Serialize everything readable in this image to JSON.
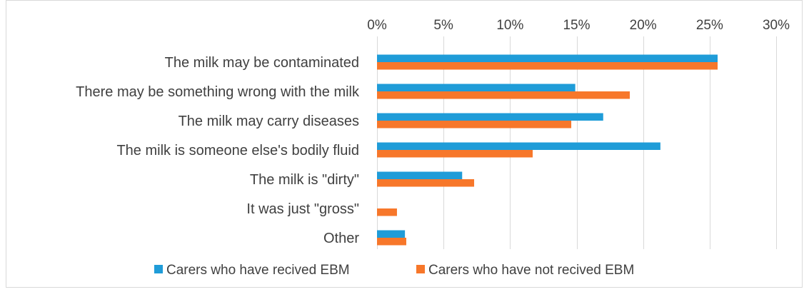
{
  "chart_data": {
    "type": "bar",
    "orientation": "horizontal",
    "categories": [
      "The milk may be contaminated",
      "There may be something wrong with the milk",
      "The milk may carry diseases",
      "The milk is someone else's bodily fluid",
      "The milk is \"dirty\"",
      "It was just \"gross\"",
      "Other"
    ],
    "series": [
      {
        "name": "Carers who have recived EBM",
        "color": "#1f9cd8",
        "values": [
          25.6,
          14.9,
          17.0,
          21.3,
          6.4,
          0,
          2.1
        ]
      },
      {
        "name": "Carers who have not recived EBM",
        "color": "#f7772a",
        "values": [
          25.6,
          19.0,
          14.6,
          11.7,
          7.3,
          1.5,
          2.2
        ]
      }
    ],
    "xlim": [
      0,
      30
    ],
    "xticks": [
      0,
      5,
      10,
      15,
      20,
      25,
      30
    ],
    "tick_labels": [
      "0%",
      "5%",
      "10%",
      "15%",
      "20%",
      "25%",
      "30%"
    ],
    "axis_position": "top",
    "grid": true,
    "legend": "bottom",
    "title": "",
    "xlabel": "",
    "ylabel": ""
  }
}
